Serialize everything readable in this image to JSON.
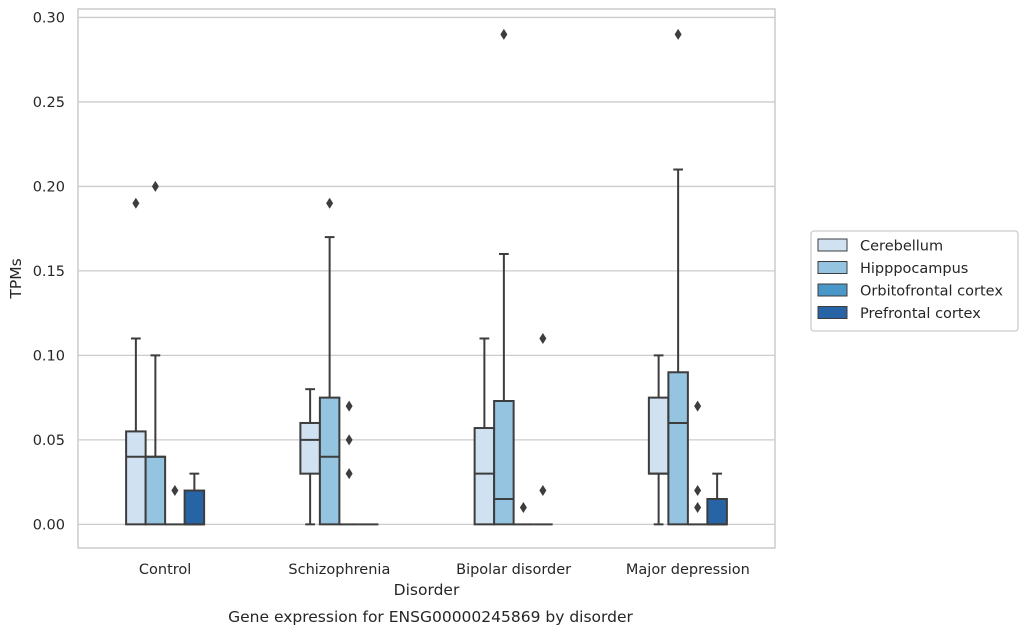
{
  "chart_data": {
    "type": "box",
    "caption": "Gene expression for ENSG00000245869 by disorder",
    "xlabel": "Disorder",
    "ylabel": "TPMs",
    "ylim": [
      -0.014,
      0.305
    ],
    "yticks": [
      0.0,
      0.05,
      0.1,
      0.15,
      0.2,
      0.25,
      0.3
    ],
    "ytick_labels": [
      "0.00",
      "0.05",
      "0.10",
      "0.15",
      "0.20",
      "0.25",
      "0.30"
    ],
    "grid": true,
    "legend_placement": "right",
    "categories": [
      "Control",
      "Schizophrenia",
      "Bipolar disorder",
      "Major depression"
    ],
    "series": [
      {
        "name": "Cerebellum",
        "color": "#d0e1f2",
        "boxes": [
          {
            "whisker_low": 0.0,
            "q1": 0.0,
            "median": 0.04,
            "q3": 0.055,
            "whisker_high": 0.11,
            "outliers": [
              0.19
            ]
          },
          {
            "whisker_low": 0.0,
            "q1": 0.03,
            "median": 0.05,
            "q3": 0.06,
            "whisker_high": 0.08,
            "outliers": []
          },
          {
            "whisker_low": 0.0,
            "q1": 0.0,
            "median": 0.03,
            "q3": 0.057,
            "whisker_high": 0.11,
            "outliers": []
          },
          {
            "whisker_low": 0.0,
            "q1": 0.03,
            "median": 0.03,
            "q3": 0.075,
            "whisker_high": 0.1,
            "outliers": []
          }
        ]
      },
      {
        "name": "Hipppocampus",
        "color": "#94c4df",
        "boxes": [
          {
            "whisker_low": 0.0,
            "q1": 0.0,
            "median": 0.04,
            "q3": 0.04,
            "whisker_high": 0.1,
            "outliers": [
              0.2
            ]
          },
          {
            "whisker_low": 0.0,
            "q1": 0.0,
            "median": 0.04,
            "q3": 0.075,
            "whisker_high": 0.17,
            "outliers": [
              0.19
            ]
          },
          {
            "whisker_low": 0.0,
            "q1": 0.0,
            "median": 0.015,
            "q3": 0.073,
            "whisker_high": 0.16,
            "outliers": [
              0.29
            ]
          },
          {
            "whisker_low": 0.0,
            "q1": 0.0,
            "median": 0.06,
            "q3": 0.09,
            "whisker_high": 0.21,
            "outliers": [
              0.29
            ]
          }
        ]
      },
      {
        "name": "Orbitofrontal cortex",
        "color": "#4a98c9",
        "boxes": [
          {
            "whisker_low": 0.0,
            "q1": 0.0,
            "median": 0.0,
            "q3": 0.0,
            "whisker_high": 0.0,
            "outliers": [
              0.02
            ]
          },
          {
            "whisker_low": 0.0,
            "q1": 0.0,
            "median": 0.0,
            "q3": 0.0,
            "whisker_high": 0.0,
            "outliers": [
              0.07,
              0.05,
              0.03
            ]
          },
          {
            "whisker_low": 0.0,
            "q1": 0.0,
            "median": 0.0,
            "q3": 0.0,
            "whisker_high": 0.0,
            "outliers": [
              0.01
            ]
          },
          {
            "whisker_low": 0.0,
            "q1": 0.0,
            "median": 0.0,
            "q3": 0.0,
            "whisker_high": 0.0,
            "outliers": [
              0.07,
              0.02,
              0.01
            ]
          }
        ]
      },
      {
        "name": "Prefrontal cortex",
        "color": "#2764a6",
        "boxes": [
          {
            "whisker_low": 0.0,
            "q1": 0.0,
            "median": 0.0,
            "q3": 0.02,
            "whisker_high": 0.03,
            "outliers": []
          },
          {
            "whisker_low": 0.0,
            "q1": 0.0,
            "median": 0.0,
            "q3": 0.0,
            "whisker_high": 0.0,
            "outliers": []
          },
          {
            "whisker_low": 0.0,
            "q1": 0.0,
            "median": 0.0,
            "q3": 0.0,
            "whisker_high": 0.0,
            "outliers": [
              0.11,
              0.02
            ]
          },
          {
            "whisker_low": 0.0,
            "q1": 0.0,
            "median": 0.0,
            "q3": 0.015,
            "whisker_high": 0.03,
            "outliers": []
          }
        ]
      }
    ]
  }
}
